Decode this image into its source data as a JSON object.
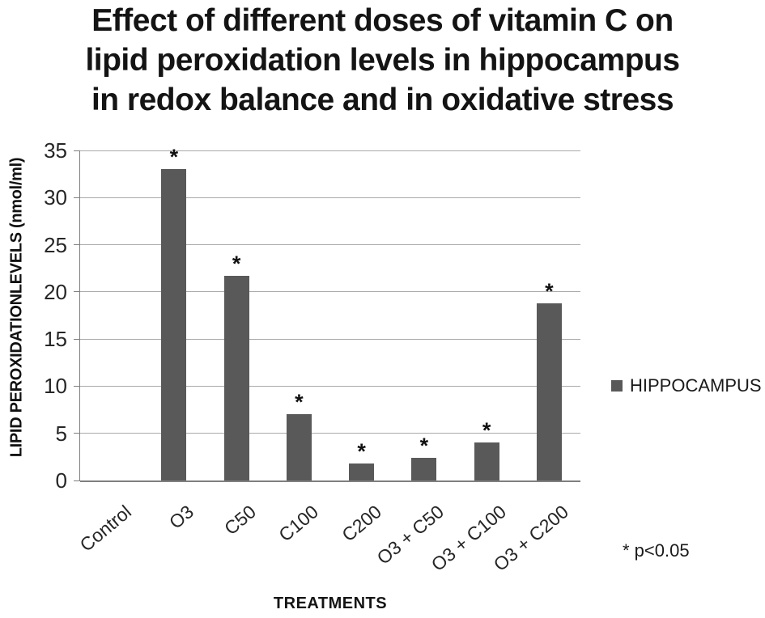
{
  "title": {
    "lines": [
      "Effect of different doses of vitamin C on",
      "lipid peroxidation levels in hippocampus",
      "in redox balance and in oxidative stress"
    ]
  },
  "chart_data": {
    "type": "bar",
    "title": "Effect of different doses of vitamin C on lipid peroxidation levels in hippocampus in redox balance and in oxidative stress",
    "categories": [
      "Control",
      "O3",
      "C50",
      "C100",
      "C200",
      "O3 + C50",
      "O3 + C100",
      "O3 + C200"
    ],
    "series": [
      {
        "name": "HIPPOCAMPUS",
        "values": [
          0,
          33,
          21.7,
          7,
          1.8,
          2.4,
          4,
          18.8
        ]
      }
    ],
    "significance_marker": "*",
    "significant": [
      false,
      true,
      true,
      true,
      true,
      true,
      true,
      true
    ],
    "xlabel": "TREATMENTS",
    "ylabel": "LIPID PEROXIDATIONLEVELS (nmol/ml)",
    "ylim": [
      0,
      35
    ],
    "yticks": [
      0,
      5,
      10,
      15,
      20,
      25,
      30,
      35
    ],
    "grid": "horizontal",
    "legend_position": "right",
    "bar_color": "#595959",
    "annotation": "* p<0.05"
  },
  "legend": {
    "label": "HIPPOCAMPUS",
    "marker_color": "#595959"
  },
  "note": {
    "text": "* p<0.05"
  }
}
